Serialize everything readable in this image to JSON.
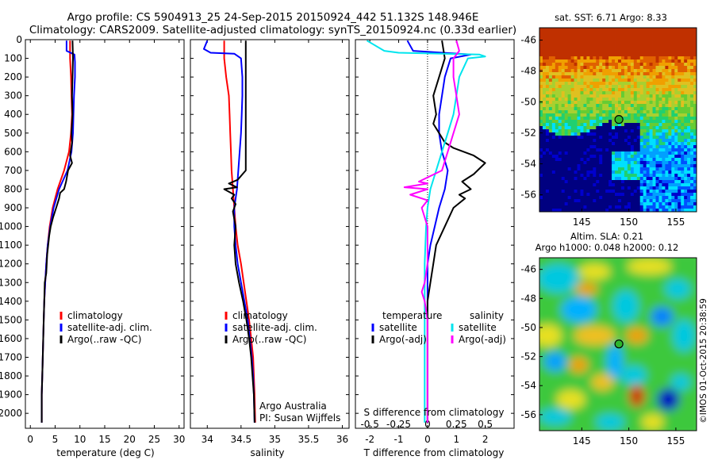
{
  "header": {
    "line1": "Argo profile: CS 5904913_25 24-Sep-2015 20150924_442 51.132S 148.946E",
    "line2": "Climatology: CARS2009. Satellite-adjusted climatology: synTS_20150924.nc (0.33d earlier)"
  },
  "colors": {
    "climatology": "#ff0000",
    "satellite": "#0000ff",
    "argo": "#000000",
    "salinity_satellite": "#00e5ee",
    "salinity_argo": "#ff00ff"
  },
  "chart_data": [
    {
      "id": "temperature",
      "type": "line",
      "xlabel": "temperature (deg C)",
      "ylabel": "",
      "xlim": [
        -1,
        31
      ],
      "ylim": [
        2080,
        0
      ],
      "xticks": [
        0,
        5,
        10,
        15,
        20,
        25,
        30
      ],
      "yticks": [
        0,
        100,
        200,
        300,
        400,
        500,
        600,
        700,
        800,
        900,
        1000,
        1100,
        1200,
        1300,
        1400,
        1500,
        1600,
        1700,
        1800,
        1900,
        2000
      ],
      "legend": [
        "climatology",
        "satellite-adj. clim.",
        "Argo(..raw -QC)"
      ],
      "legend_position": "lower-center",
      "series": [
        {
          "name": "climatology",
          "color": "#ff0000",
          "points": [
            [
              8.0,
              5
            ],
            [
              8.0,
              100
            ],
            [
              8.2,
              200
            ],
            [
              8.3,
              300
            ],
            [
              8.4,
              400
            ],
            [
              8.2,
              500
            ],
            [
              7.8,
              600
            ],
            [
              6.8,
              700
            ],
            [
              5.5,
              800
            ],
            [
              4.5,
              900
            ],
            [
              3.9,
              1000
            ],
            [
              3.5,
              1100
            ],
            [
              3.2,
              1200
            ],
            [
              3.0,
              1300
            ],
            [
              2.8,
              1400
            ],
            [
              2.7,
              1500
            ],
            [
              2.6,
              1600
            ],
            [
              2.5,
              1700
            ],
            [
              2.4,
              1800
            ],
            [
              2.3,
              1900
            ],
            [
              2.3,
              2050
            ]
          ]
        },
        {
          "name": "satellite-adj. clim.",
          "color": "#0000ff",
          "points": [
            [
              7.3,
              5
            ],
            [
              7.3,
              60
            ],
            [
              8.9,
              80
            ],
            [
              9.0,
              120
            ],
            [
              9.0,
              200
            ],
            [
              8.8,
              300
            ],
            [
              8.7,
              400
            ],
            [
              8.6,
              500
            ],
            [
              8.3,
              600
            ],
            [
              7.5,
              700
            ],
            [
              5.8,
              800
            ],
            [
              4.7,
              900
            ],
            [
              4.0,
              1000
            ],
            [
              3.5,
              1100
            ],
            [
              3.2,
              1200
            ],
            [
              3.0,
              1300
            ],
            [
              2.8,
              1400
            ],
            [
              2.7,
              1500
            ],
            [
              2.6,
              1600
            ],
            [
              2.5,
              1700
            ],
            [
              2.4,
              1800
            ],
            [
              2.3,
              1900
            ],
            [
              2.3,
              2050
            ]
          ]
        },
        {
          "name": "Argo(..raw -QC)",
          "color": "#000000",
          "points": [
            [
              8.5,
              5
            ],
            [
              8.6,
              100
            ],
            [
              8.5,
              200
            ],
            [
              8.4,
              300
            ],
            [
              8.5,
              400
            ],
            [
              8.3,
              500
            ],
            [
              8.4,
              550
            ],
            [
              8.0,
              620
            ],
            [
              8.4,
              660
            ],
            [
              7.6,
              700
            ],
            [
              7.2,
              760
            ],
            [
              6.8,
              800
            ],
            [
              6.0,
              820
            ],
            [
              5.8,
              850
            ],
            [
              5.2,
              900
            ],
            [
              4.6,
              950
            ],
            [
              4.1,
              1000
            ],
            [
              3.8,
              1050
            ],
            [
              3.4,
              1150
            ],
            [
              3.2,
              1250
            ],
            [
              2.9,
              1300
            ],
            [
              2.8,
              1400
            ],
            [
              2.7,
              1500
            ],
            [
              2.6,
              1600
            ],
            [
              2.5,
              1700
            ],
            [
              2.4,
              1800
            ],
            [
              2.3,
              1900
            ],
            [
              2.3,
              2050
            ]
          ]
        }
      ]
    },
    {
      "id": "salinity",
      "type": "line",
      "xlabel": "salinity",
      "ylabel": "",
      "xlim": [
        33.75,
        36.1
      ],
      "ylim": [
        2080,
        0
      ],
      "xticks": [
        34,
        34.5,
        35,
        35.5,
        36
      ],
      "legend": [
        "climatology",
        "satellite-adj. clim.",
        "Argo(..raw -QC)"
      ],
      "legend_position": "lower-center",
      "annotation": [
        "Argo Australia",
        "PI: Susan Wijffels"
      ],
      "series": [
        {
          "name": "climatology",
          "color": "#ff0000",
          "points": [
            [
              34.25,
              5
            ],
            [
              34.25,
              100
            ],
            [
              34.28,
              200
            ],
            [
              34.32,
              300
            ],
            [
              34.33,
              400
            ],
            [
              34.34,
              500
            ],
            [
              34.35,
              600
            ],
            [
              34.36,
              700
            ],
            [
              34.38,
              800
            ],
            [
              34.4,
              900
            ],
            [
              34.42,
              1000
            ],
            [
              34.45,
              1100
            ],
            [
              34.5,
              1200
            ],
            [
              34.54,
              1300
            ],
            [
              34.58,
              1400
            ],
            [
              34.62,
              1500
            ],
            [
              34.65,
              1600
            ],
            [
              34.68,
              1700
            ],
            [
              34.69,
              1800
            ],
            [
              34.7,
              1900
            ],
            [
              34.71,
              2050
            ]
          ]
        },
        {
          "name": "satellite-adj. clim.",
          "color": "#0000ff",
          "points": [
            [
              34.0,
              5
            ],
            [
              33.95,
              50
            ],
            [
              34.05,
              70
            ],
            [
              34.4,
              75
            ],
            [
              34.5,
              100
            ],
            [
              34.52,
              200
            ],
            [
              34.52,
              300
            ],
            [
              34.51,
              400
            ],
            [
              34.5,
              500
            ],
            [
              34.48,
              600
            ],
            [
              34.46,
              700
            ],
            [
              34.44,
              800
            ],
            [
              34.4,
              900
            ],
            [
              34.4,
              1000
            ],
            [
              34.42,
              1100
            ],
            [
              34.45,
              1200
            ],
            [
              34.5,
              1300
            ],
            [
              34.55,
              1400
            ],
            [
              34.6,
              1500
            ],
            [
              34.63,
              1600
            ],
            [
              34.66,
              1700
            ],
            [
              34.68,
              1800
            ],
            [
              34.69,
              1900
            ],
            [
              34.7,
              2050
            ]
          ]
        },
        {
          "name": "Argo(..raw -QC)",
          "color": "#000000",
          "points": [
            [
              34.57,
              5
            ],
            [
              34.57,
              100
            ],
            [
              34.57,
              200
            ],
            [
              34.57,
              400
            ],
            [
              34.57,
              600
            ],
            [
              34.57,
              700
            ],
            [
              34.45,
              750
            ],
            [
              34.32,
              770
            ],
            [
              34.44,
              790
            ],
            [
              34.25,
              800
            ],
            [
              34.4,
              830
            ],
            [
              34.36,
              850
            ],
            [
              34.42,
              880
            ],
            [
              34.38,
              920
            ],
            [
              34.4,
              960
            ],
            [
              34.42,
              1000
            ],
            [
              34.4,
              1100
            ],
            [
              34.42,
              1200
            ],
            [
              34.47,
              1300
            ],
            [
              34.53,
              1400
            ],
            [
              34.58,
              1500
            ],
            [
              34.62,
              1600
            ],
            [
              34.65,
              1700
            ],
            [
              34.67,
              1800
            ],
            [
              34.69,
              1900
            ],
            [
              34.7,
              2050
            ]
          ]
        }
      ]
    },
    {
      "id": "difference",
      "type": "line",
      "xlabel": "T difference from climatology",
      "xlabel_top": "S difference from climatology",
      "ylabel": "",
      "xlim": [
        -2.5,
        3.0
      ],
      "ylim": [
        2080,
        0
      ],
      "xticks": [
        -2,
        -1,
        0,
        1,
        2
      ],
      "xticks_salinity": [
        "-0.5",
        "-0.25",
        "0",
        "0.25",
        "0.5"
      ],
      "legend_titles": [
        "temperature",
        "salinity"
      ],
      "legend": [
        "satellite",
        "Argo(-adj)",
        "satellite",
        "Argo(-adj)"
      ],
      "legend_position": "lower-center",
      "series": [
        {
          "name": "temperature satellite",
          "color": "#0000ff",
          "points": [
            [
              -0.7,
              5
            ],
            [
              -0.5,
              60
            ],
            [
              1.5,
              80
            ],
            [
              0.8,
              100
            ],
            [
              0.6,
              200
            ],
            [
              0.5,
              300
            ],
            [
              0.4,
              400
            ],
            [
              0.4,
              500
            ],
            [
              0.5,
              600
            ],
            [
              0.7,
              700
            ],
            [
              0.6,
              800
            ],
            [
              0.4,
              900
            ],
            [
              0.25,
              1000
            ],
            [
              0.1,
              1100
            ],
            [
              0.0,
              1200
            ],
            [
              0.0,
              1300
            ],
            [
              0.0,
              1500
            ],
            [
              0.0,
              2050
            ]
          ]
        },
        {
          "name": "temperature Argo(-adj)",
          "color": "#000000",
          "points": [
            [
              0.5,
              5
            ],
            [
              0.6,
              100
            ],
            [
              0.4,
              200
            ],
            [
              0.2,
              300
            ],
            [
              0.3,
              400
            ],
            [
              0.2,
              450
            ],
            [
              0.4,
              500
            ],
            [
              0.6,
              550
            ],
            [
              0.9,
              580
            ],
            [
              1.6,
              620
            ],
            [
              2.0,
              660
            ],
            [
              1.6,
              720
            ],
            [
              1.2,
              760
            ],
            [
              1.5,
              800
            ],
            [
              1.1,
              830
            ],
            [
              1.3,
              850
            ],
            [
              0.9,
              900
            ],
            [
              0.6,
              1000
            ],
            [
              0.3,
              1100
            ],
            [
              0.2,
              1200
            ],
            [
              0.1,
              1300
            ],
            [
              0.0,
              1400
            ],
            [
              0.0,
              2050
            ]
          ]
        },
        {
          "name": "salinity satellite",
          "color": "#00e5ee",
          "points": [
            [
              -2.1,
              5
            ],
            [
              -1.5,
              60
            ],
            [
              -1.0,
              70
            ],
            [
              1.8,
              80
            ],
            [
              2.0,
              90
            ],
            [
              1.4,
              100
            ],
            [
              1.1,
              200
            ],
            [
              1.0,
              300
            ],
            [
              0.9,
              400
            ],
            [
              0.7,
              500
            ],
            [
              0.5,
              600
            ],
            [
              0.3,
              700
            ],
            [
              0.1,
              800
            ],
            [
              0.0,
              900
            ],
            [
              -0.05,
              1000
            ],
            [
              -0.1,
              1200
            ],
            [
              -0.1,
              1400
            ],
            [
              -0.1,
              1600
            ],
            [
              -0.1,
              2050
            ]
          ]
        },
        {
          "name": "salinity Argo(-adj)",
          "color": "#ff00ff",
          "points": [
            [
              1.0,
              5
            ],
            [
              1.1,
              60
            ],
            [
              0.9,
              100
            ],
            [
              0.9,
              200
            ],
            [
              1.0,
              300
            ],
            [
              1.1,
              400
            ],
            [
              0.9,
              500
            ],
            [
              0.7,
              600
            ],
            [
              0.5,
              700
            ],
            [
              -0.3,
              760
            ],
            [
              0.0,
              770
            ],
            [
              -0.8,
              790
            ],
            [
              0.0,
              800
            ],
            [
              -0.6,
              830
            ],
            [
              0.0,
              860
            ],
            [
              -0.2,
              900
            ],
            [
              0.0,
              1000
            ],
            [
              0.0,
              1200
            ],
            [
              -0.1,
              1300
            ],
            [
              -0.2,
              1350
            ],
            [
              -0.1,
              1400
            ],
            [
              0.0,
              1500
            ],
            [
              0.0,
              2050
            ]
          ]
        }
      ]
    },
    {
      "id": "sst_map",
      "type": "heatmap",
      "title": "sat. SST: 6.71  Argo: 8.33",
      "xlim": [
        140.5,
        157.2
      ],
      "ylim": [
        -57.1,
        -45.2
      ],
      "xticks": [
        145,
        150,
        155
      ],
      "yticks": [
        -46,
        -48,
        -50,
        -52,
        -54,
        -56
      ],
      "marker": {
        "lon": 148.946,
        "lat": -51.132
      }
    },
    {
      "id": "sla_map",
      "type": "heatmap",
      "title": "Altim. SLA: 0.21",
      "subtitle": "Argo h1000: 0.048  h2000: 0.12",
      "xlim": [
        140.5,
        157.2
      ],
      "ylim": [
        -57.1,
        -45.2
      ],
      "xticks": [
        145,
        150,
        155
      ],
      "yticks": [
        -46,
        -48,
        -50,
        -52,
        -54,
        -56
      ],
      "marker": {
        "lon": 148.946,
        "lat": -51.132
      }
    }
  ],
  "footer_credit": "©IMOS 01-Oct-2015 20:38:59"
}
